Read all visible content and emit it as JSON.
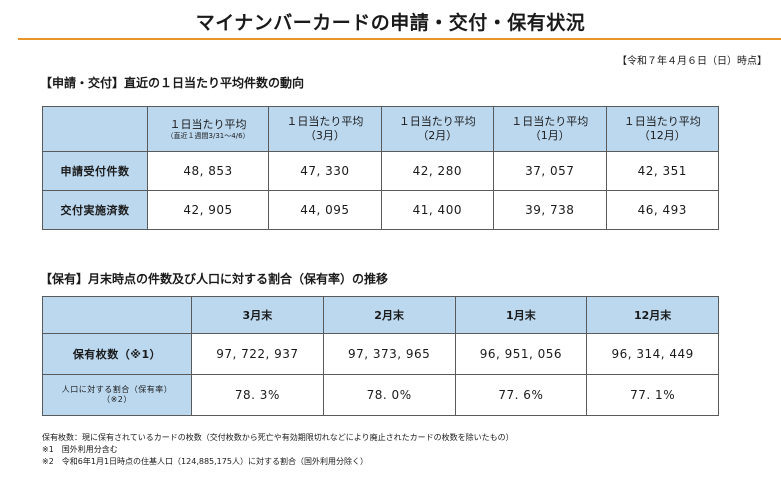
{
  "title": "マイナンバーカードの申請・交付・保有状況",
  "as_of": "【令和７年４月６日（日）時点】",
  "section1": {
    "title": "【申請・交付】直近の１日当たり平均件数の動向",
    "columns": [
      {
        "label": "１日当たり平均",
        "sub": "（直近１週間3/31～4/6）"
      },
      {
        "label": "１日当たり平均",
        "sub": "（3月）"
      },
      {
        "label": "１日当たり平均",
        "sub": "（2月）"
      },
      {
        "label": "１日当たり平均",
        "sub": "（1月）"
      },
      {
        "label": "１日当たり平均",
        "sub": "（12月）"
      }
    ],
    "rows": [
      {
        "label": "申請受付件数",
        "values": [
          "48, 853",
          "47, 330",
          "42, 280",
          "37, 057",
          "42, 351"
        ]
      },
      {
        "label": "交付実施済数",
        "values": [
          "42, 905",
          "44, 095",
          "41, 400",
          "39, 738",
          "46, 493"
        ]
      }
    ]
  },
  "section2": {
    "title": "【保有】月末時点の件数及び人口に対する割合（保有率）の推移",
    "columns": [
      "3月末",
      "2月末",
      "1月末",
      "12月末"
    ],
    "rows": [
      {
        "label": "保有枚数（※1）",
        "values": [
          "97, 722, 937",
          "97, 373, 965",
          "96, 951, 056",
          "96, 314, 449"
        ]
      },
      {
        "label": "人口に対する割合（保有率）",
        "label2": "（※2）",
        "values": [
          "78. 3%",
          "78. 0%",
          "77. 6%",
          "77. 1%"
        ]
      }
    ]
  },
  "notes": [
    "保有枚数：現に保有されているカードの枚数（交付枚数から死亡や有効期限切れなどにより廃止されたカードの枚数を除いたもの）",
    "※1　国外利用分含む",
    "※2　令和6年1月1日時点の住基人口（124,885,175人）に対する割合（国外利用分除く）"
  ],
  "colors": {
    "header_fill": "#bcd8ef",
    "rule": "#e8952a"
  }
}
